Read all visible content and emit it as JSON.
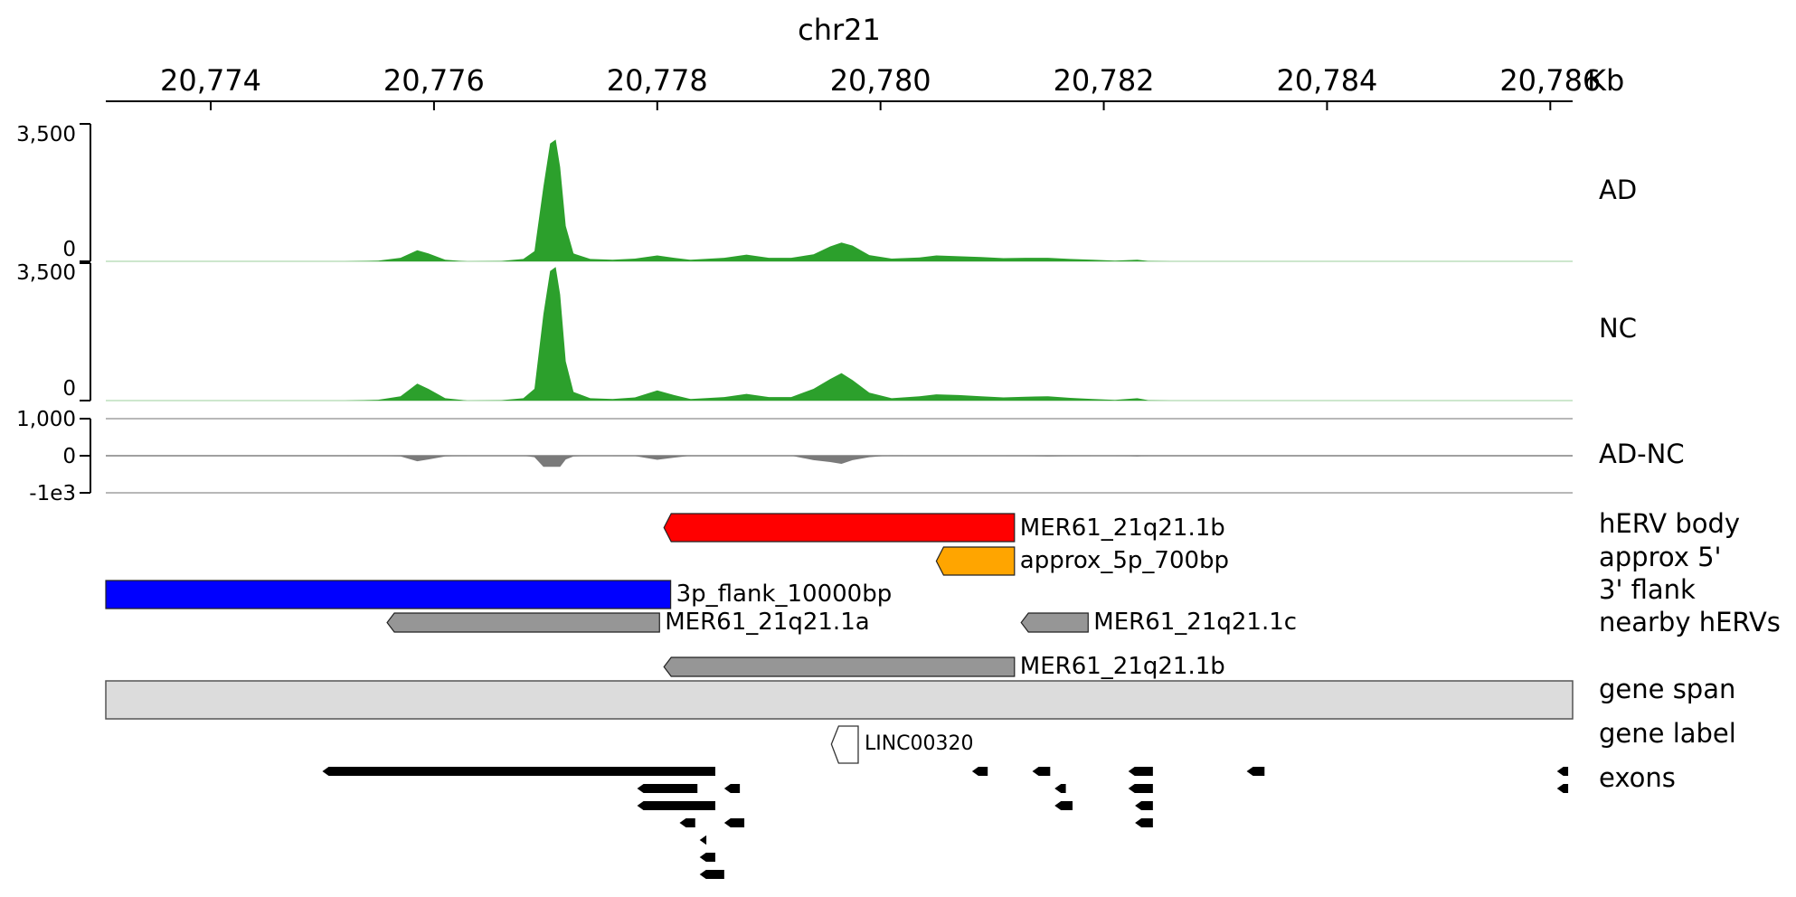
{
  "chromosome": "chr21",
  "axis": {
    "unit": "Kb",
    "ticks": [
      "20,774",
      "20,776",
      "20,778",
      "20,780",
      "20,782",
      "20,784",
      "20,786"
    ],
    "tick_values_kb": [
      20774,
      20776,
      20778,
      20780,
      20782,
      20784,
      20786
    ],
    "range_kb": [
      20773.06,
      20786.2
    ]
  },
  "tracks": {
    "ad": {
      "label": "AD",
      "y_max_label": "3,500",
      "y_min_label": "0",
      "y_range": [
        0,
        3500
      ],
      "color": "#2ca02c"
    },
    "nc": {
      "label": "NC",
      "y_max_label": "3,500",
      "y_min_label": "0",
      "y_range": [
        0,
        3500
      ],
      "color": "#2ca02c"
    },
    "diff": {
      "label": "AD-NC",
      "y_max_label": "1,000",
      "y_mid_label": "0",
      "y_min_label": "-1e3",
      "y_range": [
        -1000,
        1000
      ],
      "color": "#808080"
    },
    "herv_body": {
      "label": "hERV body",
      "feature": "MER61_21q21.1b",
      "color": "#ff0000",
      "start_kb": 20778.06,
      "end_kb": 20781.2,
      "strand": "-"
    },
    "approx5": {
      "label": "approx 5'",
      "feature": "approx_5p_700bp",
      "color": "#ffa500",
      "start_kb": 20780.5,
      "end_kb": 20781.2,
      "strand": "-"
    },
    "flank3": {
      "label": "3' flank",
      "feature": "3p_flank_10000bp",
      "color": "#0000ff",
      "start_kb": 20773.06,
      "end_kb": 20778.12,
      "strand": "none"
    },
    "nearby": {
      "label": "nearby hERVs",
      "color": "#969696",
      "features": [
        {
          "name": "MER61_21q21.1a",
          "start_kb": 20775.58,
          "end_kb": 20778.02,
          "strand": "-",
          "row": 0
        },
        {
          "name": "MER61_21q21.1c",
          "start_kb": 20781.26,
          "end_kb": 20781.86,
          "strand": "-",
          "row": 0
        },
        {
          "name": "MER61_21q21.1b",
          "start_kb": 20778.06,
          "end_kb": 20781.2,
          "strand": "-",
          "row": 1
        }
      ]
    },
    "gene_span": {
      "label": "gene span",
      "color": "#dcdcdc"
    },
    "gene_label": {
      "label": "gene label",
      "gene": "LINC00320",
      "start_kb": 20779.56,
      "end_kb": 20779.8
    },
    "exons": {
      "label": "exons",
      "color": "#000000",
      "items": [
        {
          "start_kb": 20775.0,
          "end_kb": 20778.52,
          "row": 0
        },
        {
          "start_kb": 20780.82,
          "end_kb": 20780.96,
          "row": 0
        },
        {
          "start_kb": 20781.36,
          "end_kb": 20781.52,
          "row": 0
        },
        {
          "start_kb": 20782.22,
          "end_kb": 20782.44,
          "row": 0
        },
        {
          "start_kb": 20783.28,
          "end_kb": 20783.44,
          "row": 0
        },
        {
          "start_kb": 20786.06,
          "end_kb": 20786.16,
          "row": 0
        },
        {
          "start_kb": 20777.82,
          "end_kb": 20778.36,
          "row": 1
        },
        {
          "start_kb": 20778.6,
          "end_kb": 20778.74,
          "row": 1
        },
        {
          "start_kb": 20781.56,
          "end_kb": 20781.66,
          "row": 1
        },
        {
          "start_kb": 20782.22,
          "end_kb": 20782.44,
          "row": 1
        },
        {
          "start_kb": 20786.06,
          "end_kb": 20786.16,
          "row": 1
        },
        {
          "start_kb": 20777.82,
          "end_kb": 20778.52,
          "row": 2
        },
        {
          "start_kb": 20781.56,
          "end_kb": 20781.72,
          "row": 2
        },
        {
          "start_kb": 20782.28,
          "end_kb": 20782.44,
          "row": 2
        },
        {
          "start_kb": 20778.2,
          "end_kb": 20778.34,
          "row": 3
        },
        {
          "start_kb": 20778.6,
          "end_kb": 20778.78,
          "row": 3
        },
        {
          "start_kb": 20782.28,
          "end_kb": 20782.44,
          "row": 3
        },
        {
          "start_kb": 20778.38,
          "end_kb": 20778.44,
          "row": 4
        },
        {
          "start_kb": 20778.38,
          "end_kb": 20778.52,
          "row": 5
        },
        {
          "start_kb": 20778.38,
          "end_kb": 20778.6,
          "row": 6
        }
      ]
    }
  },
  "coverage": {
    "ad_points": [
      [
        20773.06,
        0
      ],
      [
        20775.2,
        0
      ],
      [
        20775.5,
        15
      ],
      [
        20775.7,
        90
      ],
      [
        20775.85,
        280
      ],
      [
        20775.95,
        200
      ],
      [
        20776.1,
        40
      ],
      [
        20776.3,
        0
      ],
      [
        20776.6,
        10
      ],
      [
        20776.8,
        60
      ],
      [
        20776.9,
        260
      ],
      [
        20776.98,
        1900
      ],
      [
        20777.04,
        3000
      ],
      [
        20777.09,
        3100
      ],
      [
        20777.13,
        2400
      ],
      [
        20777.18,
        900
      ],
      [
        20777.25,
        200
      ],
      [
        20777.4,
        60
      ],
      [
        20777.6,
        40
      ],
      [
        20777.8,
        70
      ],
      [
        20778.0,
        150
      ],
      [
        20778.15,
        90
      ],
      [
        20778.3,
        40
      ],
      [
        20778.6,
        90
      ],
      [
        20778.8,
        170
      ],
      [
        20779.0,
        90
      ],
      [
        20779.2,
        90
      ],
      [
        20779.4,
        180
      ],
      [
        20779.55,
        380
      ],
      [
        20779.65,
        480
      ],
      [
        20779.75,
        400
      ],
      [
        20779.9,
        160
      ],
      [
        20780.1,
        70
      ],
      [
        20780.35,
        100
      ],
      [
        20780.5,
        150
      ],
      [
        20780.7,
        130
      ],
      [
        20780.9,
        110
      ],
      [
        20781.1,
        80
      ],
      [
        20781.3,
        90
      ],
      [
        20781.5,
        90
      ],
      [
        20781.7,
        60
      ],
      [
        20781.9,
        40
      ],
      [
        20782.1,
        15
      ],
      [
        20782.3,
        40
      ],
      [
        20782.4,
        10
      ],
      [
        20782.6,
        0
      ],
      [
        20786.2,
        0
      ]
    ],
    "nc_points": [
      [
        20773.06,
        0
      ],
      [
        20775.2,
        0
      ],
      [
        20775.5,
        20
      ],
      [
        20775.7,
        110
      ],
      [
        20775.85,
        430
      ],
      [
        20775.95,
        300
      ],
      [
        20776.1,
        60
      ],
      [
        20776.3,
        0
      ],
      [
        20776.6,
        10
      ],
      [
        20776.8,
        60
      ],
      [
        20776.9,
        300
      ],
      [
        20776.98,
        2200
      ],
      [
        20777.04,
        3300
      ],
      [
        20777.09,
        3400
      ],
      [
        20777.13,
        2700
      ],
      [
        20777.18,
        1000
      ],
      [
        20777.25,
        220
      ],
      [
        20777.4,
        60
      ],
      [
        20777.6,
        40
      ],
      [
        20777.8,
        80
      ],
      [
        20778.0,
        260
      ],
      [
        20778.15,
        140
      ],
      [
        20778.3,
        40
      ],
      [
        20778.6,
        90
      ],
      [
        20778.8,
        170
      ],
      [
        20779.0,
        90
      ],
      [
        20779.2,
        90
      ],
      [
        20779.4,
        300
      ],
      [
        20779.55,
        550
      ],
      [
        20779.65,
        700
      ],
      [
        20779.75,
        520
      ],
      [
        20779.9,
        200
      ],
      [
        20780.1,
        60
      ],
      [
        20780.35,
        110
      ],
      [
        20780.5,
        160
      ],
      [
        20780.7,
        140
      ],
      [
        20780.9,
        110
      ],
      [
        20781.1,
        80
      ],
      [
        20781.3,
        100
      ],
      [
        20781.5,
        110
      ],
      [
        20781.7,
        70
      ],
      [
        20781.9,
        40
      ],
      [
        20782.1,
        15
      ],
      [
        20782.3,
        60
      ],
      [
        20782.4,
        10
      ],
      [
        20782.6,
        0
      ],
      [
        20786.2,
        0
      ]
    ]
  }
}
